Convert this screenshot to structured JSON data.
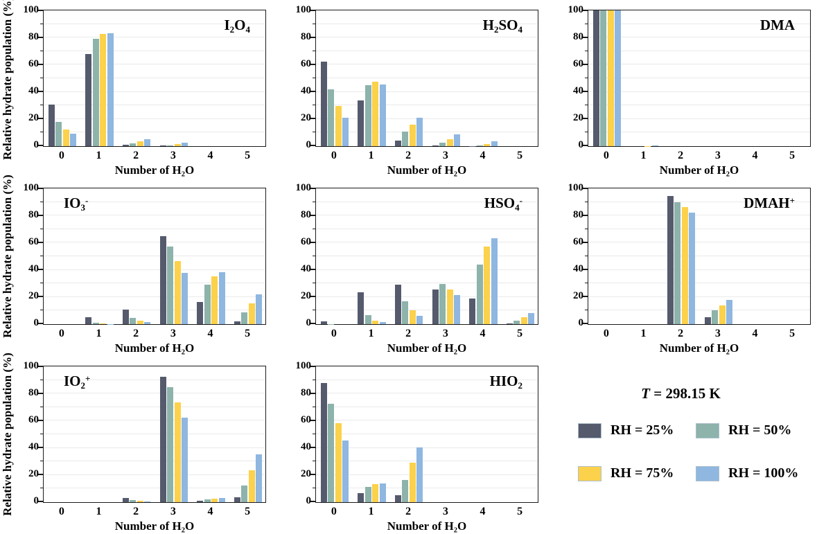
{
  "figure": {
    "ylabel": "Relative hydrate population (%)",
    "xlabel": "Number of H₂O",
    "xlabel_parts": [
      {
        "t": "Number of H"
      },
      {
        "t": "2",
        "sub": true
      },
      {
        "t": "O"
      }
    ],
    "temperature_label": "T = 298.15 K",
    "temperature_label_parts": [
      {
        "t": "T",
        "italic": true
      },
      {
        "t": " = 298.15 K"
      }
    ],
    "series_colors": [
      "#555a6d",
      "#8db3ab",
      "#fcd14b",
      "#8fb7e0"
    ],
    "axis_color": "#1a1a1a",
    "grid_color": "#eaeaea",
    "legend": {
      "items": [
        {
          "label": "RH = 25%",
          "color": "#555a6d"
        },
        {
          "label": "RH = 50%",
          "color": "#8db3ab"
        },
        {
          "label": "RH = 75%",
          "color": "#fcd14b"
        },
        {
          "label": "RH = 100%",
          "color": "#8fb7e0"
        }
      ]
    }
  },
  "chart_data": [
    {
      "type": "bar",
      "title": "I₂O₄",
      "title_pos": "right",
      "title_parts": [
        {
          "t": "I"
        },
        {
          "t": "2",
          "sub": true
        },
        {
          "t": "O"
        },
        {
          "t": "4",
          "sub": true
        }
      ],
      "categories": [
        "0",
        "1",
        "2",
        "3",
        "4",
        "5"
      ],
      "series": [
        {
          "name": "RH = 25%",
          "values": [
            30.5,
            68,
            1,
            0.5,
            0,
            0
          ]
        },
        {
          "name": "RH = 50%",
          "values": [
            18,
            79,
            2,
            0.7,
            0,
            0
          ]
        },
        {
          "name": "RH = 75%",
          "values": [
            12,
            82.5,
            3.5,
            1.5,
            0,
            0
          ]
        },
        {
          "name": "RH = 100%",
          "values": [
            9,
            83,
            5,
            2.7,
            0,
            0
          ]
        }
      ],
      "ylim": [
        0,
        100
      ],
      "yticks": [
        0,
        20,
        40,
        60,
        80,
        100
      ],
      "show_ylabel": true
    },
    {
      "type": "bar",
      "title": "H₂SO₄",
      "title_pos": "right",
      "title_parts": [
        {
          "t": "H"
        },
        {
          "t": "2",
          "sub": true
        },
        {
          "t": "SO"
        },
        {
          "t": "4",
          "sub": true
        }
      ],
      "categories": [
        "0",
        "1",
        "2",
        "3",
        "4",
        "5"
      ],
      "series": [
        {
          "name": "RH = 25%",
          "values": [
            62,
            33.5,
            4,
            0.3,
            0.2,
            0
          ]
        },
        {
          "name": "RH = 50%",
          "values": [
            42,
            45,
            10.5,
            2.5,
            0.7,
            0
          ]
        },
        {
          "name": "RH = 75%",
          "values": [
            29.5,
            47.5,
            16,
            5,
            1.7,
            0
          ]
        },
        {
          "name": "RH = 100%",
          "values": [
            21,
            45.5,
            21,
            8.5,
            3.5,
            0
          ]
        }
      ],
      "ylim": [
        0,
        100
      ],
      "yticks": [
        0,
        20,
        40,
        60,
        80,
        100
      ],
      "show_ylabel": false
    },
    {
      "type": "bar",
      "title": "DMA",
      "title_pos": "right",
      "title_parts": [
        {
          "t": "DMA"
        }
      ],
      "categories": [
        "0",
        "1",
        "2",
        "3",
        "4",
        "5"
      ],
      "series": [
        {
          "name": "RH = 25%",
          "values": [
            100,
            0,
            0,
            0,
            0,
            0
          ]
        },
        {
          "name": "RH = 50%",
          "values": [
            100,
            0,
            0,
            0,
            0,
            0
          ]
        },
        {
          "name": "RH = 75%",
          "values": [
            100,
            0.2,
            0,
            0,
            0,
            0
          ]
        },
        {
          "name": "RH = 100%",
          "values": [
            99.8,
            0.4,
            0,
            0,
            0,
            0
          ]
        }
      ],
      "ylim": [
        0,
        100
      ],
      "yticks": [
        0,
        20,
        40,
        60,
        80,
        100
      ],
      "show_ylabel": false
    },
    {
      "type": "bar",
      "title": "IO₃⁻",
      "title_pos": "left",
      "title_parts": [
        {
          "t": "IO"
        },
        {
          "t": "3",
          "sub": true
        },
        {
          "t": "-",
          "sup": true
        }
      ],
      "categories": [
        "0",
        "1",
        "2",
        "3",
        "4",
        "5"
      ],
      "series": [
        {
          "name": "RH = 25%",
          "values": [
            0,
            5.2,
            10.5,
            65,
            16.5,
            2.3
          ]
        },
        {
          "name": "RH = 50%",
          "values": [
            0,
            1,
            4.5,
            57,
            29,
            8.5
          ]
        },
        {
          "name": "RH = 75%",
          "values": [
            0,
            0.3,
            2.5,
            46.5,
            35,
            15.5
          ]
        },
        {
          "name": "RH = 100%",
          "values": [
            0,
            0.2,
            1.5,
            38,
            38.2,
            22
          ]
        }
      ],
      "ylim": [
        0,
        100
      ],
      "yticks": [
        0,
        20,
        40,
        60,
        80,
        100
      ],
      "show_ylabel": true
    },
    {
      "type": "bar",
      "title": "HSO₄⁻",
      "title_pos": "right",
      "title_parts": [
        {
          "t": "HSO"
        },
        {
          "t": "4",
          "sub": true
        },
        {
          "t": "-",
          "sup": true
        }
      ],
      "categories": [
        "0",
        "1",
        "2",
        "3",
        "4",
        "5"
      ],
      "series": [
        {
          "name": "RH = 25%",
          "values": [
            2.3,
            23.5,
            29,
            25.5,
            19,
            0.5
          ]
        },
        {
          "name": "RH = 50%",
          "values": [
            0.2,
            6.5,
            16.8,
            29.5,
            44,
            2.7
          ]
        },
        {
          "name": "RH = 75%",
          "values": [
            0,
            2.5,
            10,
            25.5,
            57,
            5.2
          ]
        },
        {
          "name": "RH = 100%",
          "values": [
            0,
            1.3,
            6,
            21.5,
            63.5,
            8
          ]
        }
      ],
      "ylim": [
        0,
        100
      ],
      "yticks": [
        0,
        20,
        40,
        60,
        80,
        100
      ],
      "show_ylabel": false
    },
    {
      "type": "bar",
      "title": "DMAH⁺",
      "title_pos": "right",
      "title_parts": [
        {
          "t": "DMAH"
        },
        {
          "t": "+",
          "sup": true
        }
      ],
      "categories": [
        "0",
        "1",
        "2",
        "3",
        "4",
        "5"
      ],
      "series": [
        {
          "name": "RH = 25%",
          "values": [
            0,
            0,
            94.5,
            5,
            0,
            0
          ]
        },
        {
          "name": "RH = 50%",
          "values": [
            0,
            0,
            90,
            10,
            0,
            0
          ]
        },
        {
          "name": "RH = 75%",
          "values": [
            0,
            0,
            86,
            14,
            0,
            0
          ]
        },
        {
          "name": "RH = 100%",
          "values": [
            0,
            0,
            82,
            18,
            0,
            0
          ]
        }
      ],
      "ylim": [
        0,
        100
      ],
      "yticks": [
        0,
        20,
        40,
        60,
        80,
        100
      ],
      "show_ylabel": false
    },
    {
      "type": "bar",
      "title": "IO₂⁺",
      "title_pos": "left",
      "title_parts": [
        {
          "t": "IO"
        },
        {
          "t": "2",
          "sub": true
        },
        {
          "t": "+",
          "sup": true
        }
      ],
      "categories": [
        "0",
        "1",
        "2",
        "3",
        "4",
        "5"
      ],
      "series": [
        {
          "name": "RH = 25%",
          "values": [
            0,
            0,
            3,
            92.5,
            1,
            3.5
          ]
        },
        {
          "name": "RH = 50%",
          "values": [
            0,
            0,
            1.5,
            84.5,
            2,
            12
          ]
        },
        {
          "name": "RH = 75%",
          "values": [
            0,
            0,
            1,
            73.5,
            2.5,
            23.5
          ]
        },
        {
          "name": "RH = 100%",
          "values": [
            0,
            0,
            0.5,
            62,
            3,
            35
          ]
        }
      ],
      "ylim": [
        0,
        100
      ],
      "yticks": [
        0,
        20,
        40,
        60,
        80,
        100
      ],
      "show_ylabel": true
    },
    {
      "type": "bar",
      "title": "HIO₂",
      "title_pos": "right",
      "title_parts": [
        {
          "t": "HIO"
        },
        {
          "t": "2",
          "sub": true
        }
      ],
      "categories": [
        "0",
        "1",
        "2",
        "3",
        "4",
        "5"
      ],
      "series": [
        {
          "name": "RH = 25%",
          "values": [
            88,
            6.5,
            5,
            0,
            0,
            0
          ]
        },
        {
          "name": "RH = 50%",
          "values": [
            72.5,
            11,
            16.5,
            0,
            0,
            0
          ]
        },
        {
          "name": "RH = 75%",
          "values": [
            58,
            13.5,
            29,
            0,
            0,
            0
          ]
        },
        {
          "name": "RH = 100%",
          "values": [
            45.5,
            14,
            40.5,
            0,
            0,
            0
          ]
        }
      ],
      "ylim": [
        0,
        100
      ],
      "yticks": [
        0,
        20,
        40,
        60,
        80,
        100
      ],
      "show_ylabel": false
    }
  ]
}
